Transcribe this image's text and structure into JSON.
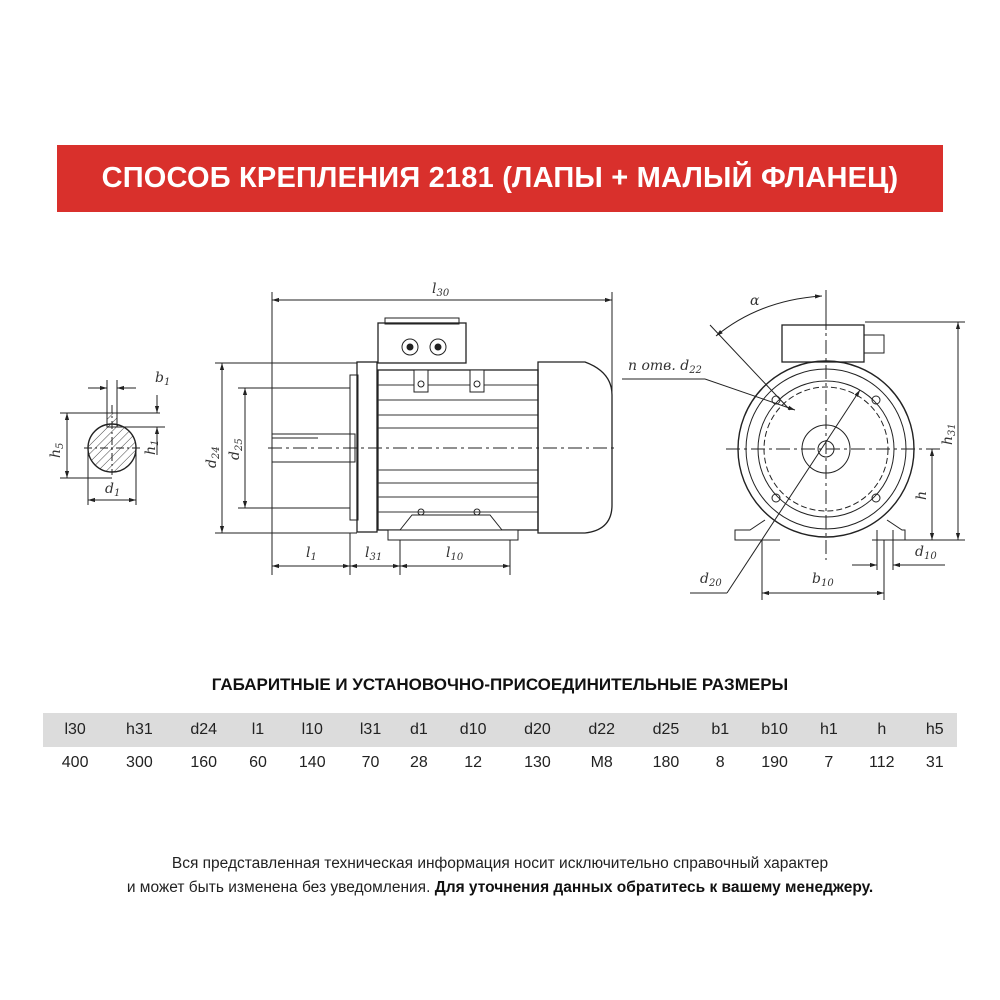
{
  "title": "СПОСОБ КРЕПЛЕНИЯ 2181 (ЛАПЫ + МАЛЫЙ ФЛАНЕЦ)",
  "colors": {
    "banner": "#d9302c",
    "table_header": "#dcdcdc"
  },
  "drawing_labels": {
    "l30": "l",
    "l30_sub": "30",
    "b1": "b",
    "b1_sub": "1",
    "h5": "h",
    "h5_sub": "5",
    "h1": "h",
    "h1_sub": "1",
    "d1": "d",
    "d1_sub": "1",
    "d24": "d",
    "d24_sub": "24",
    "d25": "d",
    "d25_sub": "25",
    "l1": "l",
    "l1_sub": "1",
    "l31": "l",
    "l31_sub": "31",
    "l10": "l",
    "l10_sub": "10",
    "alpha": "α",
    "n_holes": "n отв. d",
    "n_holes_sub": "22",
    "h31": "h",
    "h31_sub": "31",
    "h": "h",
    "d10": "d",
    "d10_sub": "10",
    "d20": "d",
    "d20_sub": "20",
    "b10": "b",
    "b10_sub": "10"
  },
  "subtitle": "ГАБАРИТНЫЕ И УСТАНОВОЧНО-ПРИСОЕДИНИТЕЛЬНЫЕ РАЗМЕРЫ",
  "table": {
    "headers": [
      "l30",
      "h31",
      "d24",
      "l1",
      "l10",
      "l31",
      "d1",
      "d10",
      "d20",
      "d22",
      "d25",
      "b1",
      "b10",
      "h1",
      "h",
      "h5"
    ],
    "values": [
      "400",
      "300",
      "160",
      "60",
      "140",
      "70",
      "28",
      "12",
      "130",
      "M8",
      "180",
      "8",
      "190",
      "7",
      "112",
      "31"
    ]
  },
  "footer": {
    "line1": "Вся представленная техническая информация носит исключительно справочный характер",
    "line2_normal": "и может быть изменена без уведомления. ",
    "line2_bold": "Для уточнения данных обратитесь к вашему менеджеру."
  }
}
